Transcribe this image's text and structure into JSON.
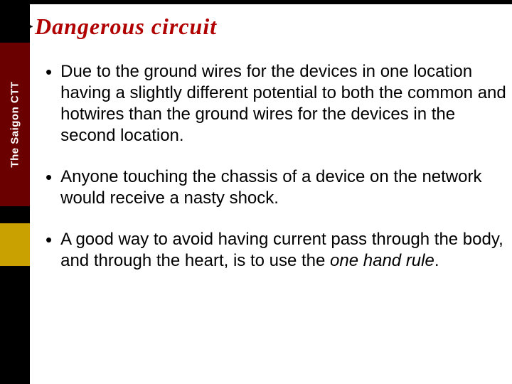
{
  "title": {
    "brace": "}",
    "text": "Dangerous circuit"
  },
  "sidebar": {
    "vertical_label": "The Saigon CTT"
  },
  "bullets": [
    {
      "text": "Due to the ground wires for the devices in one location having a slightly different potential to both the common and hotwires than the ground wires for the devices in the second location."
    },
    {
      "text": "Anyone touching the chassis of a device on the network would receive a nasty shock."
    },
    {
      "pre": "A good way to avoid having current pass through the body, and through the heart, is to use the ",
      "italic": "one hand rule",
      "post": "."
    }
  ],
  "colors": {
    "title_color": "#b00000",
    "sidebar_maroon": "#6a0000",
    "sidebar_gold": "#c9a100",
    "sidebar_black": "#000000",
    "text_color": "#000000",
    "background": "#ffffff"
  }
}
